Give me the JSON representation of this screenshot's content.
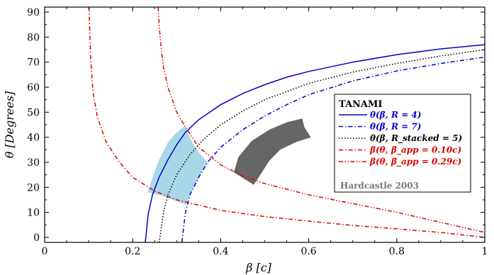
{
  "chart_data": {
    "type": "line",
    "xlabel": "β [c]",
    "ylabel": "θ [Degrees]",
    "xlim": [
      0,
      1
    ],
    "ylim": [
      -2,
      92
    ],
    "xticks": [
      0,
      0.2,
      0.4,
      0.6,
      0.8,
      1
    ],
    "xtick_labels": [
      "0",
      "0.2",
      "0.4",
      "0.6",
      "0.8",
      "1"
    ],
    "yticks": [
      0,
      10,
      20,
      30,
      40,
      50,
      60,
      70,
      80,
      90
    ],
    "ytick_labels": [
      "0",
      "10",
      "20",
      "30",
      "40",
      "50",
      "60",
      "70",
      "80",
      "90"
    ],
    "legend": {
      "title": "TANAMI",
      "placement": "right",
      "entries": [
        {
          "label": "θ(β, R = 4)",
          "color": "#0000cc",
          "style": "solid"
        },
        {
          "label": "θ(β, R = 7)",
          "color": "#0000cc",
          "style": "dashdot"
        },
        {
          "label": "θ(β, R_stacked = 5)",
          "color": "#000000",
          "style": "dotted"
        },
        {
          "label": "β(θ, β_app = 0.10c)",
          "color": "#dd0000",
          "style": "dashdot"
        },
        {
          "label": "β(θ, β_app = 0.29c)",
          "color": "#dd0000",
          "style": "dashdotdot"
        }
      ]
    },
    "series": [
      {
        "name": "θ(β, R = 4)",
        "color": "#0000cc",
        "style": "solid",
        "points": [
          [
            0.2285,
            -2
          ],
          [
            0.23,
            0
          ],
          [
            0.235,
            9
          ],
          [
            0.245,
            17
          ],
          [
            0.26,
            24
          ],
          [
            0.28,
            31
          ],
          [
            0.3,
            37
          ],
          [
            0.32,
            42
          ],
          [
            0.35,
            47
          ],
          [
            0.4,
            53
          ],
          [
            0.45,
            57.5
          ],
          [
            0.5,
            61
          ],
          [
            0.55,
            64
          ],
          [
            0.6,
            66.3
          ],
          [
            0.7,
            70
          ],
          [
            0.8,
            73
          ],
          [
            0.9,
            75.3
          ],
          [
            1.0,
            77
          ]
        ]
      },
      {
        "name": "θ(β, R = 7)",
        "color": "#0000cc",
        "style": "dashdot",
        "points": [
          [
            0.312,
            -2
          ],
          [
            0.313,
            0
          ],
          [
            0.32,
            10
          ],
          [
            0.33,
            17
          ],
          [
            0.35,
            24
          ],
          [
            0.37,
            30
          ],
          [
            0.4,
            36
          ],
          [
            0.45,
            43
          ],
          [
            0.5,
            48.5
          ],
          [
            0.55,
            53
          ],
          [
            0.6,
            57
          ],
          [
            0.7,
            62.5
          ],
          [
            0.8,
            66.5
          ],
          [
            0.9,
            69.5
          ],
          [
            1.0,
            72
          ]
        ]
      },
      {
        "name": "θ(β, R_stacked = 5)",
        "color": "#000000",
        "style": "dotted",
        "points": [
          [
            0.26,
            -2
          ],
          [
            0.262,
            0
          ],
          [
            0.27,
            10
          ],
          [
            0.28,
            17
          ],
          [
            0.3,
            25
          ],
          [
            0.33,
            33
          ],
          [
            0.36,
            39
          ],
          [
            0.4,
            45
          ],
          [
            0.45,
            50.5
          ],
          [
            0.5,
            55
          ],
          [
            0.6,
            61.5
          ],
          [
            0.7,
            66
          ],
          [
            0.8,
            69.5
          ],
          [
            0.9,
            72.5
          ],
          [
            1.0,
            75
          ]
        ]
      },
      {
        "name": "β(θ, β_app = 0.10c)",
        "color": "#dd0000",
        "style": "dashdot",
        "points": [
          [
            0.101,
            92
          ],
          [
            0.102,
            85
          ],
          [
            0.105,
            70
          ],
          [
            0.11,
            58
          ],
          [
            0.12,
            48
          ],
          [
            0.14,
            38
          ],
          [
            0.17,
            30
          ],
          [
            0.2,
            24
          ],
          [
            0.25,
            18.5
          ],
          [
            0.3,
            15
          ],
          [
            0.4,
            10.8
          ],
          [
            0.5,
            8.3
          ],
          [
            0.6,
            6.5
          ],
          [
            0.7,
            4.8
          ],
          [
            0.8,
            3.4
          ],
          [
            0.9,
            2.0
          ],
          [
            1.0,
            0
          ]
        ]
      },
      {
        "name": "β(θ, β_app = 0.29c)",
        "color": "#dd0000",
        "style": "dashdotdot",
        "points": [
          [
            0.258,
            92
          ],
          [
            0.26,
            85
          ],
          [
            0.265,
            75
          ],
          [
            0.27,
            68
          ],
          [
            0.28,
            60
          ],
          [
            0.3,
            50
          ],
          [
            0.32,
            44
          ],
          [
            0.35,
            36
          ],
          [
            0.4,
            29
          ],
          [
            0.45,
            24.5
          ],
          [
            0.5,
            21.5
          ],
          [
            0.6,
            17
          ],
          [
            0.7,
            13.5
          ],
          [
            0.8,
            10
          ],
          [
            0.9,
            6
          ],
          [
            1.0,
            2
          ]
        ]
      }
    ],
    "regions": [
      {
        "name": "TANAMI allowed region",
        "color": "#a8d8e8",
        "polygon": [
          [
            0.234,
            18
          ],
          [
            0.245,
            24
          ],
          [
            0.26,
            31
          ],
          [
            0.28,
            38
          ],
          [
            0.3,
            42
          ],
          [
            0.318,
            44.5
          ],
          [
            0.335,
            38
          ],
          [
            0.35,
            34
          ],
          [
            0.37,
            30
          ],
          [
            0.35,
            24
          ],
          [
            0.335,
            19
          ],
          [
            0.32,
            13
          ],
          [
            0.3,
            14.5
          ],
          [
            0.27,
            16.5
          ]
        ]
      },
      {
        "name": "Hardcastle 2003",
        "color": "#666666",
        "polygon": [
          [
            0.43,
            26
          ],
          [
            0.44,
            32
          ],
          [
            0.47,
            38.5
          ],
          [
            0.51,
            43
          ],
          [
            0.55,
            46
          ],
          [
            0.585,
            47.5
          ],
          [
            0.59,
            44
          ],
          [
            0.605,
            40
          ],
          [
            0.57,
            38
          ],
          [
            0.535,
            35
          ],
          [
            0.51,
            30.5
          ],
          [
            0.49,
            25
          ],
          [
            0.475,
            21
          ]
        ]
      }
    ],
    "annotations": [
      "Hardcastle 2003"
    ]
  }
}
